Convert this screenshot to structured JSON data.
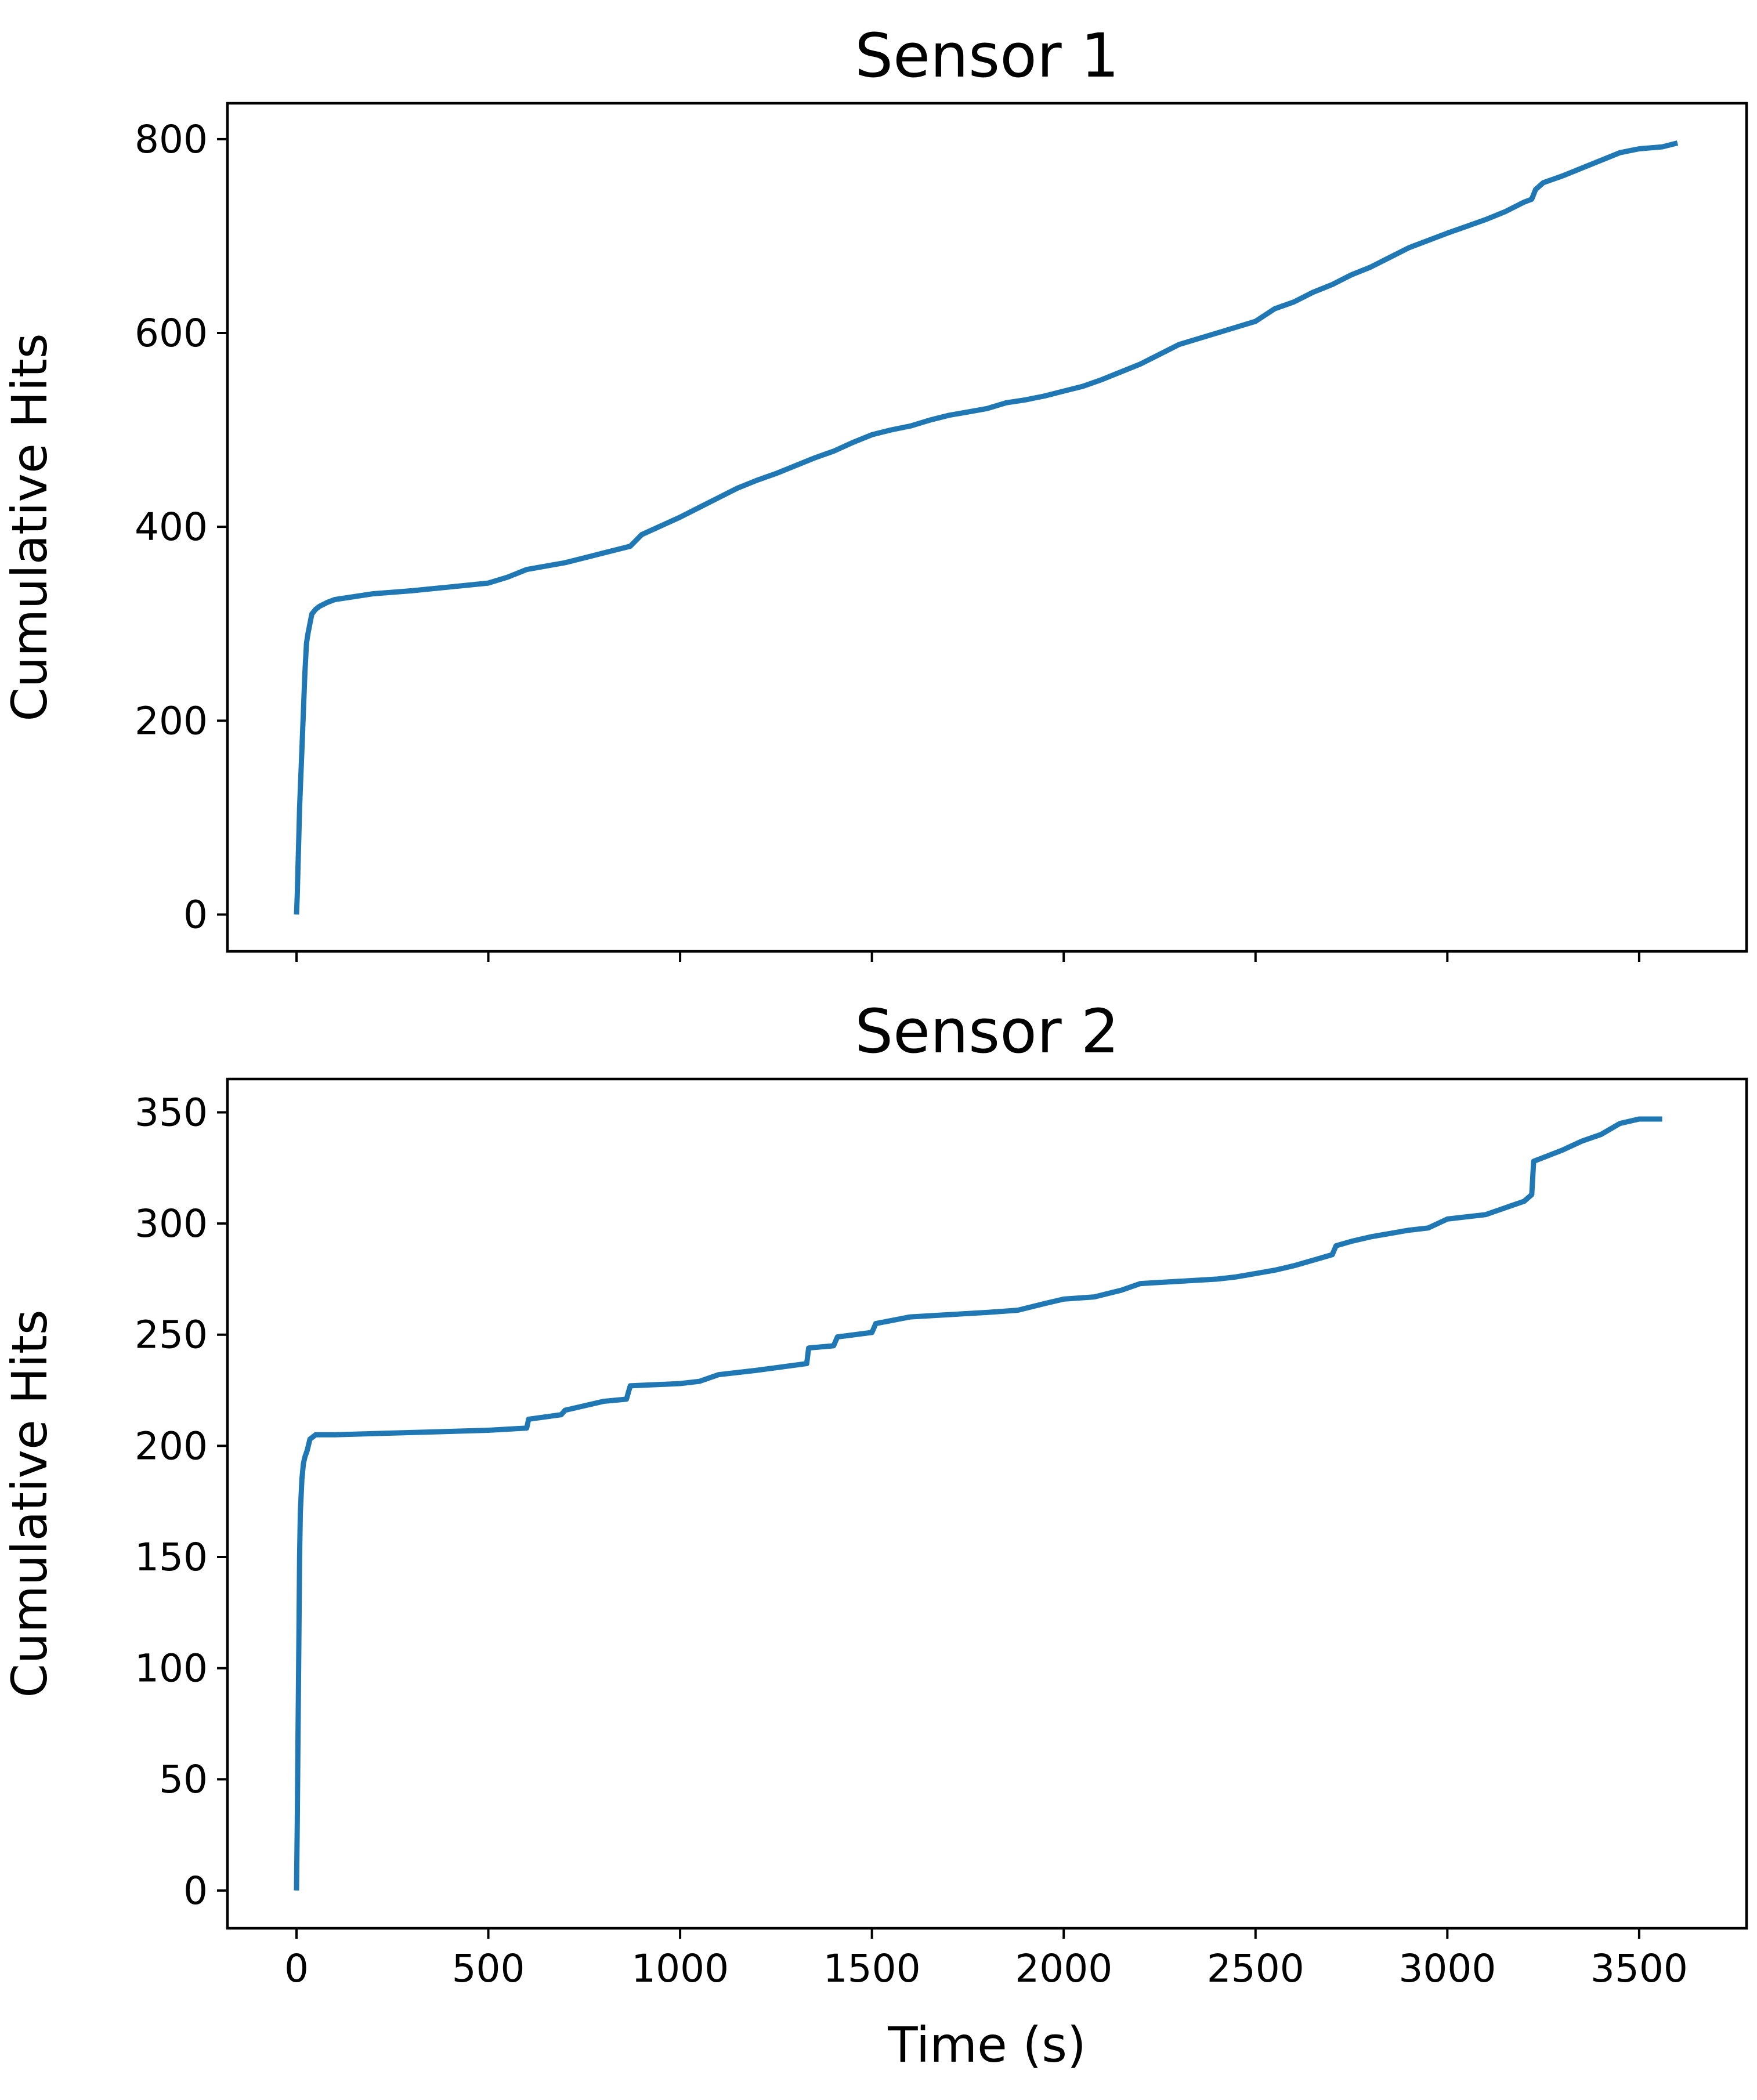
{
  "chart_data": [
    {
      "type": "line",
      "title": "Sensor 1",
      "xlabel": "",
      "ylabel": "Cumulative Hits",
      "xlim": [
        -180,
        3780
      ],
      "ylim": [
        -38,
        837
      ],
      "x_ticks": [
        0,
        500,
        1000,
        1500,
        2000,
        2500,
        3000,
        3500
      ],
      "x_tick_labels_visible": false,
      "y_ticks": [
        0,
        200,
        400,
        600,
        800
      ],
      "y_tick_labels": [
        "0",
        "200",
        "400",
        "600",
        "800"
      ],
      "grid": false,
      "color": "#1f77b4",
      "series": [
        {
          "x": [
            0,
            2,
            4,
            6,
            8,
            10,
            14,
            18,
            22,
            26,
            30,
            35,
            40,
            50,
            60,
            80,
            100,
            150,
            200,
            300,
            400,
            500,
            550,
            600,
            700,
            800,
            870,
            900,
            950,
            1000,
            1050,
            1100,
            1150,
            1200,
            1250,
            1300,
            1350,
            1400,
            1450,
            1500,
            1550,
            1600,
            1650,
            1700,
            1800,
            1850,
            1900,
            1950,
            2000,
            2050,
            2100,
            2150,
            2200,
            2250,
            2300,
            2400,
            2500,
            2550,
            2600,
            2650,
            2700,
            2750,
            2800,
            2850,
            2900,
            3000,
            3050,
            3100,
            3150,
            3200,
            3220,
            3230,
            3250,
            3300,
            3350,
            3400,
            3450,
            3500,
            3560,
            3600
          ],
          "y": [
            0,
            20,
            50,
            80,
            110,
            130,
            170,
            210,
            250,
            280,
            290,
            300,
            310,
            315,
            318,
            322,
            325,
            328,
            331,
            334,
            338,
            342,
            348,
            356,
            363,
            373,
            380,
            392,
            401,
            410,
            420,
            430,
            440,
            448,
            455,
            463,
            471,
            478,
            487,
            495,
            500,
            504,
            510,
            515,
            522,
            528,
            531,
            535,
            540,
            545,
            552,
            560,
            568,
            578,
            588,
            600,
            612,
            625,
            632,
            642,
            650,
            660,
            668,
            678,
            688,
            703,
            710,
            717,
            725,
            735,
            738,
            748,
            755,
            762,
            770,
            778,
            786,
            790,
            792,
            796
          ]
        }
      ]
    },
    {
      "type": "line",
      "title": "Sensor 2",
      "xlabel": "Time (s)",
      "ylabel": "Cumulative Hits",
      "xlim": [
        -180,
        3780
      ],
      "ylim": [
        -17,
        365
      ],
      "x_ticks": [
        0,
        500,
        1000,
        1500,
        2000,
        2500,
        3000,
        3500
      ],
      "x_tick_labels": [
        "0",
        "500",
        "1000",
        "1500",
        "2000",
        "2500",
        "3000",
        "3500"
      ],
      "y_ticks": [
        0,
        50,
        100,
        150,
        200,
        250,
        300,
        350
      ],
      "y_tick_labels": [
        "0",
        "50",
        "100",
        "150",
        "200",
        "250",
        "300",
        "350"
      ],
      "grid": false,
      "color": "#1f77b4",
      "series": [
        {
          "x": [
            0,
            2,
            4,
            6,
            8,
            10,
            14,
            18,
            22,
            28,
            35,
            50,
            70,
            100,
            300,
            500,
            600,
            605,
            690,
            700,
            750,
            800,
            860,
            870,
            1000,
            1050,
            1100,
            1200,
            1330,
            1335,
            1400,
            1410,
            1500,
            1510,
            1600,
            1700,
            1800,
            1880,
            1950,
            2000,
            2080,
            2150,
            2200,
            2300,
            2400,
            2450,
            2550,
            2600,
            2700,
            2710,
            2750,
            2800,
            2900,
            2950,
            3000,
            3100,
            3200,
            3220,
            3225,
            3300,
            3350,
            3400,
            3450,
            3500,
            3560
          ],
          "y": [
            0,
            30,
            70,
            110,
            150,
            170,
            185,
            192,
            195,
            198,
            203,
            205,
            205,
            205,
            206,
            207,
            208,
            212,
            214,
            216,
            218,
            220,
            221,
            227,
            228,
            229,
            232,
            234,
            237,
            244,
            245,
            249,
            251,
            255,
            258,
            259,
            260,
            261,
            264,
            266,
            267,
            270,
            273,
            274,
            275,
            276,
            279,
            281,
            286,
            290,
            292,
            294,
            297,
            298,
            302,
            304,
            310,
            313,
            328,
            333,
            337,
            340,
            345,
            347,
            347
          ]
        }
      ]
    }
  ]
}
